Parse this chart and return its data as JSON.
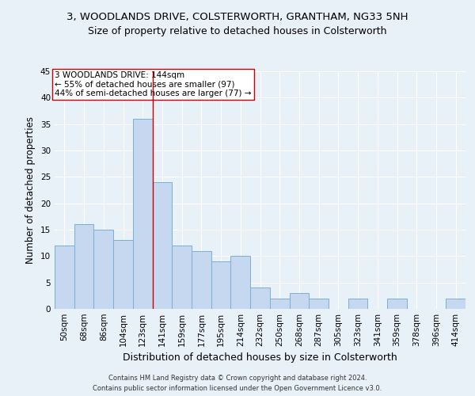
{
  "title1": "3, WOODLANDS DRIVE, COLSTERWORTH, GRANTHAM, NG33 5NH",
  "title2": "Size of property relative to detached houses in Colsterworth",
  "xlabel": "Distribution of detached houses by size in Colsterworth",
  "ylabel": "Number of detached properties",
  "footnote1": "Contains HM Land Registry data © Crown copyright and database right 2024.",
  "footnote2": "Contains public sector information licensed under the Open Government Licence v3.0.",
  "categories": [
    "50sqm",
    "68sqm",
    "86sqm",
    "104sqm",
    "123sqm",
    "141sqm",
    "159sqm",
    "177sqm",
    "195sqm",
    "214sqm",
    "232sqm",
    "250sqm",
    "268sqm",
    "287sqm",
    "305sqm",
    "323sqm",
    "341sqm",
    "359sqm",
    "378sqm",
    "396sqm",
    "414sqm"
  ],
  "values": [
    12,
    16,
    15,
    13,
    36,
    24,
    12,
    11,
    9,
    10,
    4,
    2,
    3,
    2,
    0,
    2,
    0,
    2,
    0,
    0,
    2
  ],
  "bar_color": "#c5d8f0",
  "bar_edge_color": "#7aafd4",
  "subject_line_color": "#cc0000",
  "subject_line_index": 4.5,
  "annotation_text": "3 WOODLANDS DRIVE: 144sqm\n← 55% of detached houses are smaller (97)\n44% of semi-detached houses are larger (77) →",
  "annotation_box_color": "#ffffff",
  "annotation_box_edge_color": "#cc0000",
  "ylim": [
    0,
    45
  ],
  "yticks": [
    0,
    5,
    10,
    15,
    20,
    25,
    30,
    35,
    40,
    45
  ],
  "background_color": "#e8f0f8",
  "grid_color": "#ffffff",
  "title1_fontsize": 9.5,
  "title2_fontsize": 9,
  "xlabel_fontsize": 9,
  "ylabel_fontsize": 8.5,
  "tick_fontsize": 7.5,
  "footnote_fontsize": 6,
  "annotation_fontsize": 7.5
}
